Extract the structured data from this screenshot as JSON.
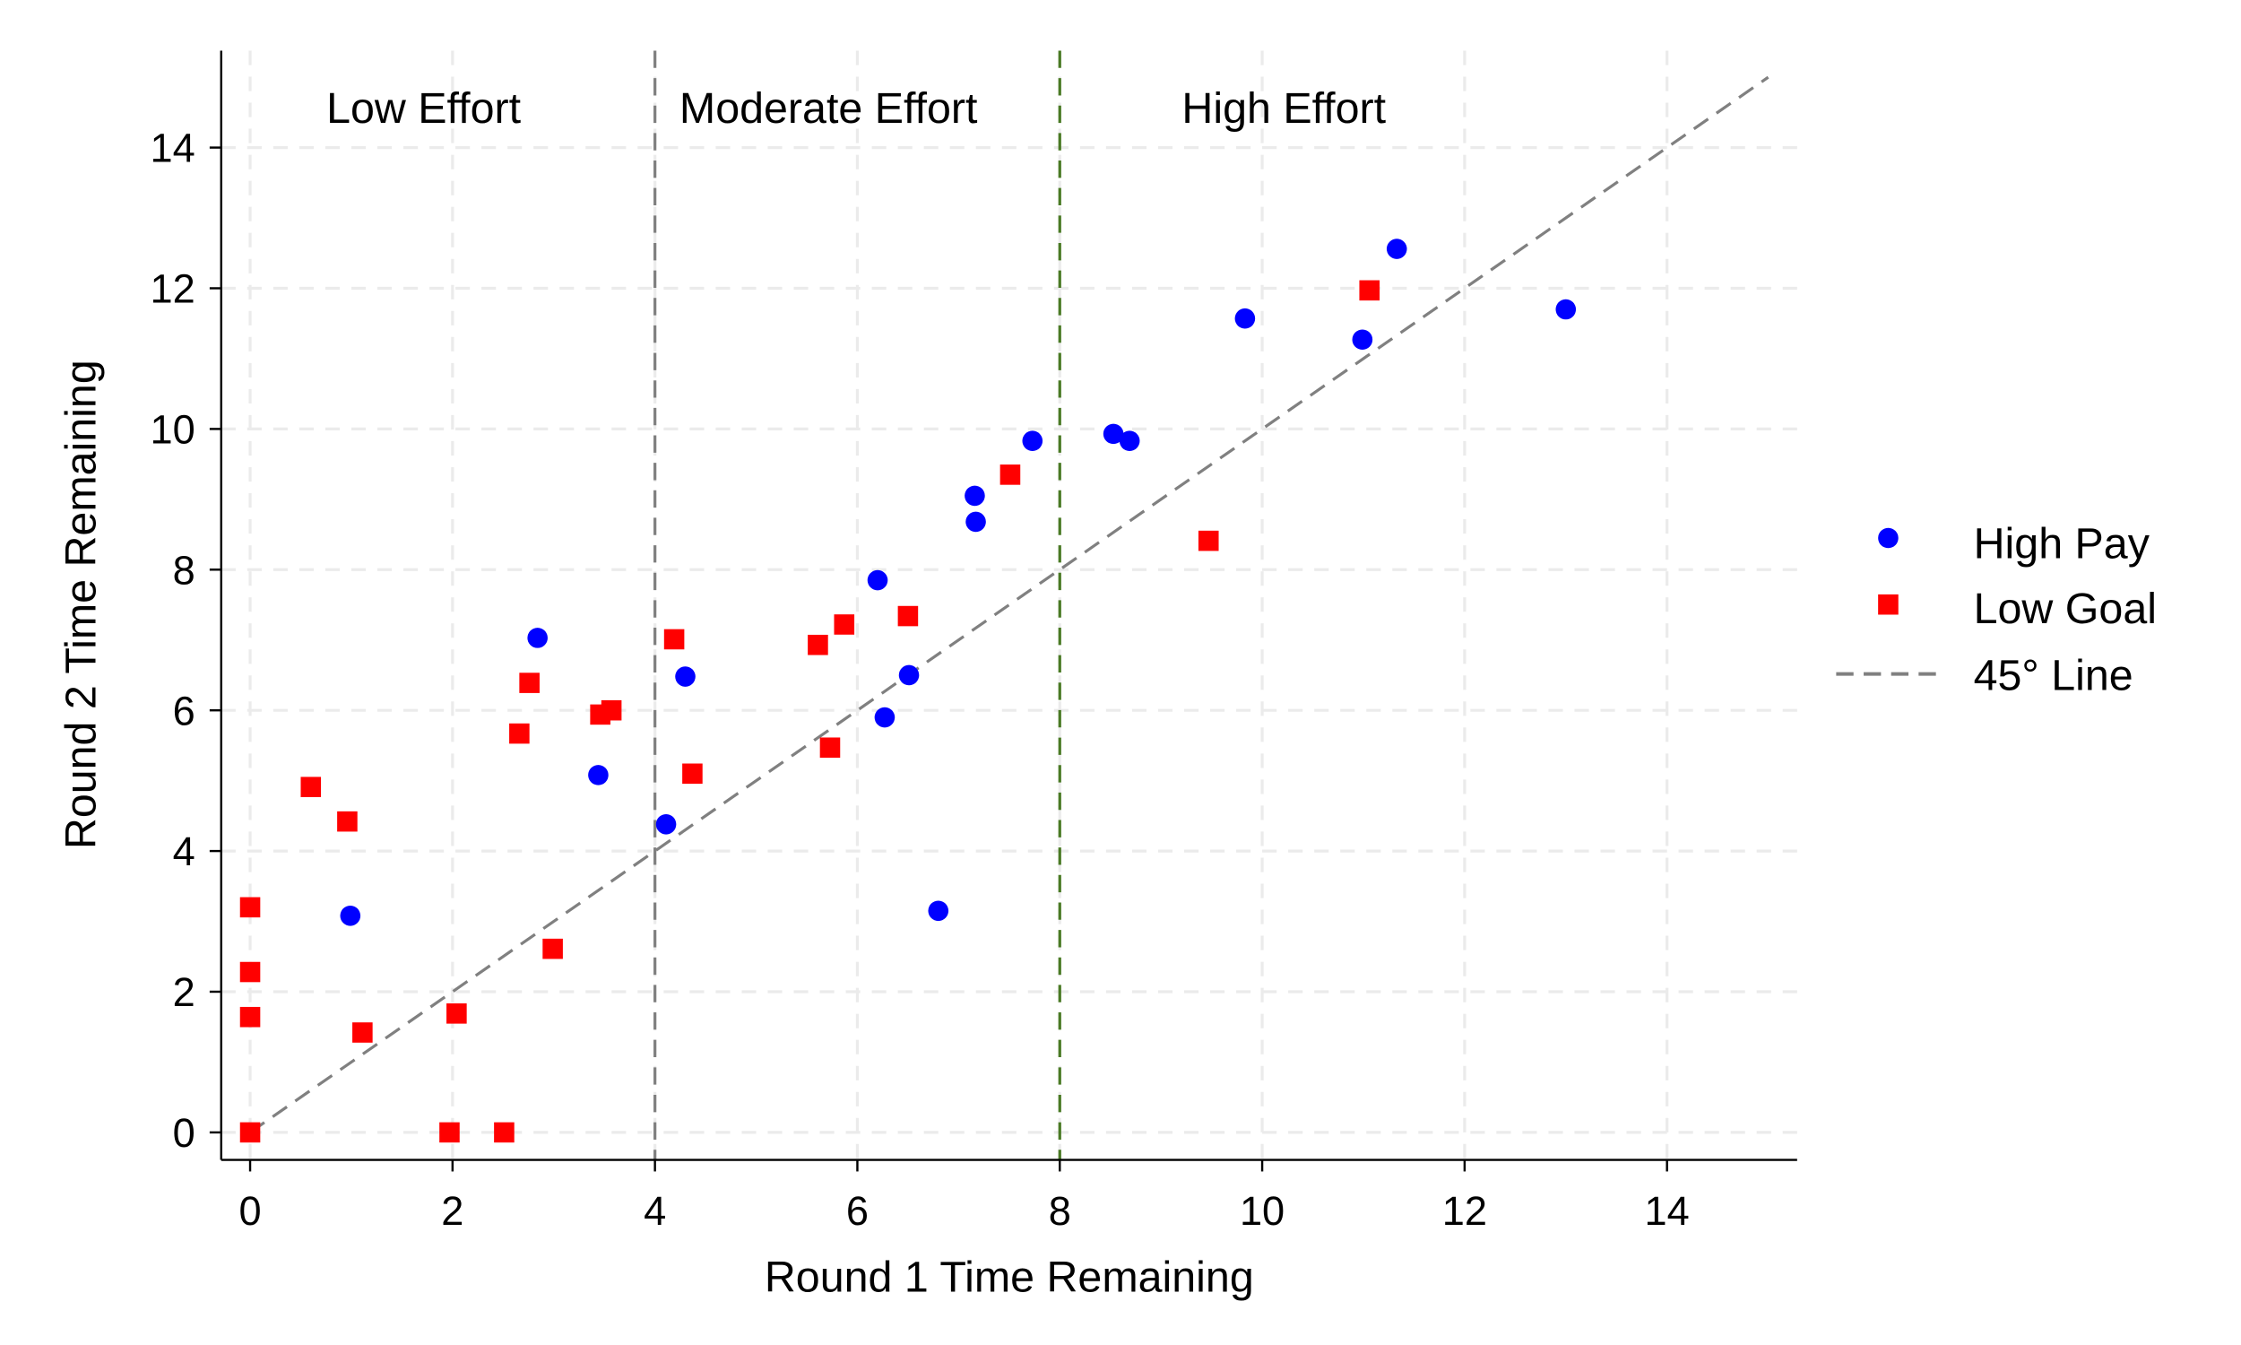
{
  "chart_data": {
    "type": "scatter",
    "xlabel": "Round 1 Time Remaining",
    "ylabel": "Round 2 Time Remaining",
    "xlim": [
      -0.3,
      15.3
    ],
    "ylim": [
      -0.4,
      15.4
    ],
    "xticks": [
      0,
      2,
      4,
      6,
      8,
      10,
      12,
      14
    ],
    "yticks": [
      0,
      2,
      4,
      6,
      8,
      10,
      12,
      14
    ],
    "xtick_labels": [
      "0",
      "2",
      "4",
      "6",
      "8",
      "10",
      "12",
      "14"
    ],
    "ytick_labels": [
      "0",
      "2",
      "4",
      "6",
      "8",
      "10",
      "12",
      "14"
    ],
    "grid": true,
    "legend_position": "right",
    "regions": [
      {
        "label": "Low Effort",
        "center_x": 2.0
      },
      {
        "label": "Moderate Effort",
        "center_x": 6.0
      },
      {
        "label": "High Effort",
        "center_x": 10.5
      }
    ],
    "vertical_lines": [
      {
        "x": 4,
        "color": "#808080"
      },
      {
        "x": 8,
        "color": "#4a7a25"
      }
    ],
    "reference_line": {
      "name": "45° Line",
      "from": [
        0,
        0
      ],
      "to": [
        15,
        15
      ],
      "color": "#808080"
    },
    "series": [
      {
        "name": "High Pay",
        "marker": "circle",
        "color": "#0000ff",
        "points": [
          [
            0.99,
            3.08
          ],
          [
            2.84,
            7.03
          ],
          [
            3.44,
            5.08
          ],
          [
            4.11,
            4.38
          ],
          [
            4.3,
            6.48
          ],
          [
            6.2,
            7.85
          ],
          [
            6.27,
            5.9
          ],
          [
            6.51,
            6.5
          ],
          [
            6.8,
            3.15
          ],
          [
            7.16,
            9.05
          ],
          [
            7.17,
            8.68
          ],
          [
            7.73,
            9.83
          ],
          [
            8.53,
            9.93
          ],
          [
            8.69,
            9.83
          ],
          [
            9.83,
            11.57
          ],
          [
            10.99,
            11.27
          ],
          [
            11.33,
            12.56
          ],
          [
            13.0,
            11.7
          ]
        ]
      },
      {
        "name": "Low Goal",
        "marker": "square",
        "color": "#ff0000",
        "points": [
          [
            0,
            3.2
          ],
          [
            0,
            2.28
          ],
          [
            0,
            1.64
          ],
          [
            0,
            0
          ],
          [
            0.6,
            4.91
          ],
          [
            0.96,
            4.42
          ],
          [
            1.11,
            1.42
          ],
          [
            1.97,
            0
          ],
          [
            2.04,
            1.69
          ],
          [
            2.51,
            0
          ],
          [
            2.66,
            5.67
          ],
          [
            2.76,
            6.39
          ],
          [
            2.99,
            2.61
          ],
          [
            3.46,
            5.94
          ],
          [
            3.57,
            6.0
          ],
          [
            4.19,
            7.01
          ],
          [
            4.37,
            5.1
          ],
          [
            5.61,
            6.93
          ],
          [
            5.73,
            5.47
          ],
          [
            5.87,
            7.22
          ],
          [
            6.5,
            7.34
          ],
          [
            7.51,
            9.35
          ],
          [
            9.47,
            8.41
          ],
          [
            11.06,
            11.97
          ]
        ]
      }
    ]
  }
}
